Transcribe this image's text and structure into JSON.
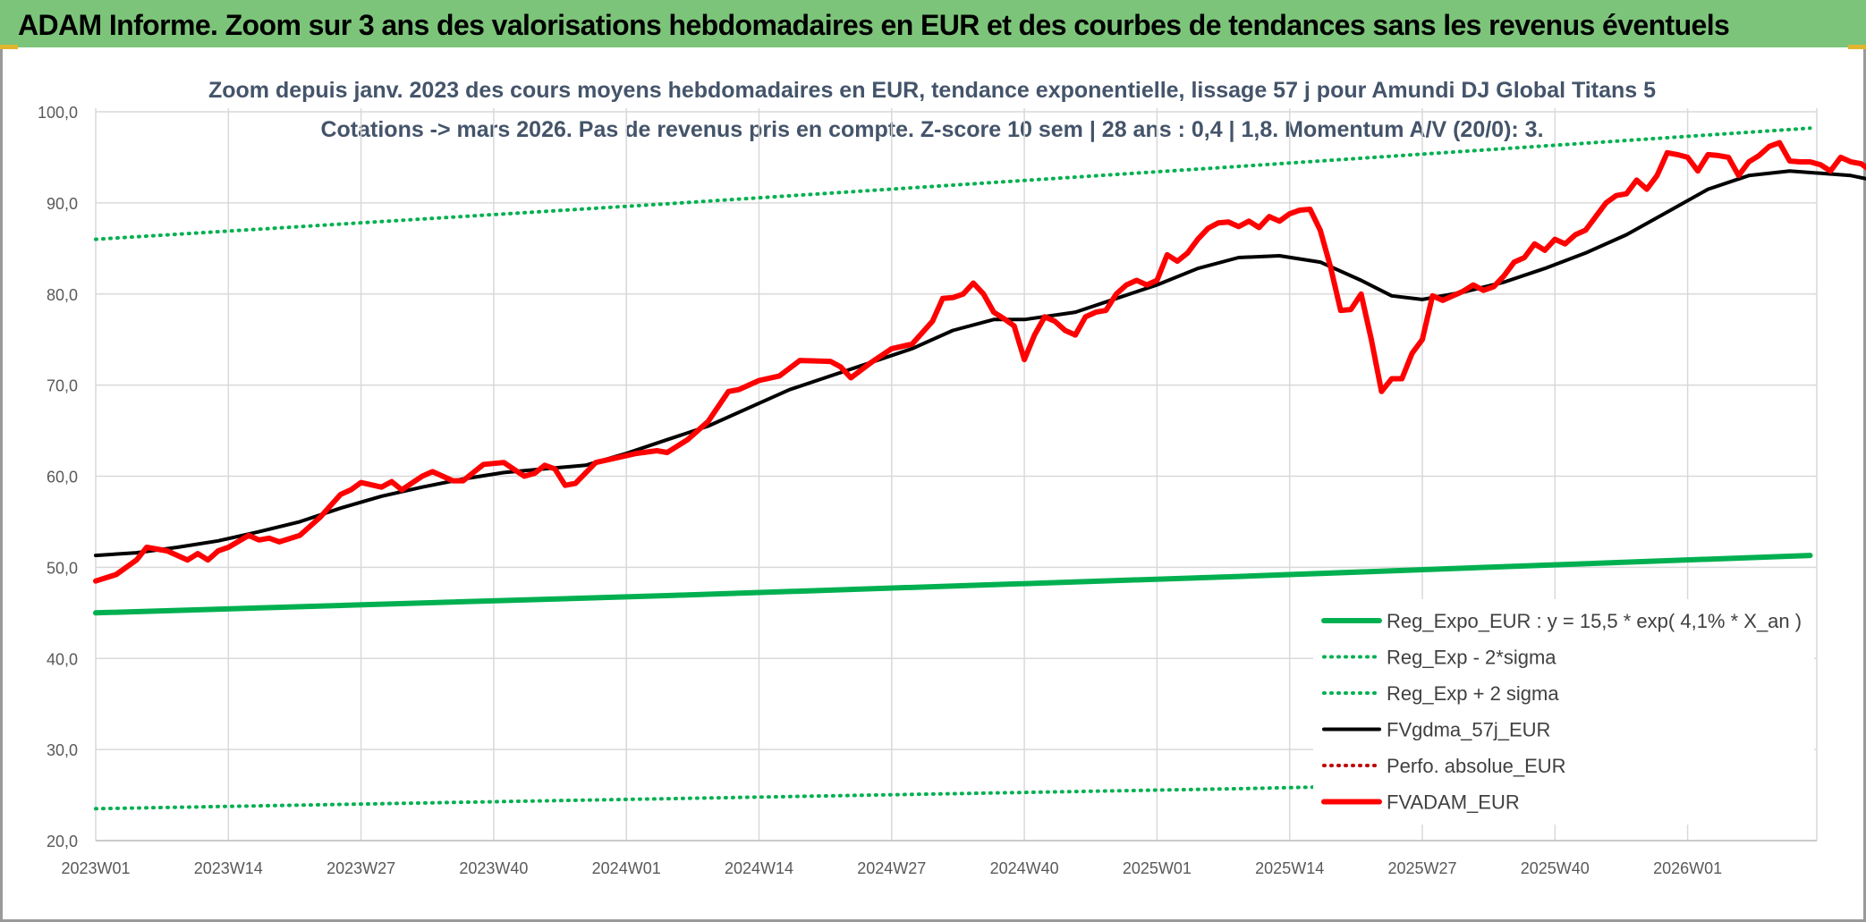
{
  "header": {
    "title": "ADAM Informe. Zoom sur 3 ans des valorisations hebdomadaires en EUR et des courbes de tendances sans les revenus éventuels"
  },
  "colors": {
    "header_bg": "#7cc47a",
    "reg_green": "#00b050",
    "price_red": "#ff0000",
    "average_black": "#000000",
    "perfo_red_dotted": "#c00000"
  },
  "chart_data": {
    "type": "line",
    "title": "Zoom depuis janv. 2023 des cours moyens hebdomadaires en EUR, tendance exponentielle, lissage 57 j pour Amundi DJ Global Titans 5",
    "subtitle": "Cotations -> mars 2026. Pas de revenus pris en compte. Z-score 10 sem | 28 ans : 0,4 | 1,8. Momentum A/V (20/0): 3.",
    "xlabel": "",
    "ylabel": "",
    "ylim": [
      20,
      100
    ],
    "yticks": [
      "20,0",
      "30,0",
      "40,0",
      "50,0",
      "60,0",
      "70,0",
      "80,0",
      "90,0",
      "100,0"
    ],
    "x_tick_labels": [
      "2023W01",
      "2023W14",
      "2023W27",
      "2023W40",
      "2024W01",
      "2024W14",
      "2024W27",
      "2024W40",
      "2025W01",
      "2025W14",
      "2025W27",
      "2025W40",
      "2026W01"
    ],
    "x_range_weeks": [
      0,
      168
    ],
    "grid": true,
    "legend_position": "right",
    "series": [
      {
        "name": "Reg_Expo_EUR : y = 15,5 * exp( 4,1% *  X_an )",
        "style": "solid-thick",
        "color": "#00b050",
        "points": [
          [
            0,
            45.0
          ],
          [
            56,
            46.9
          ],
          [
            112,
            49.0
          ],
          [
            168,
            51.3
          ]
        ]
      },
      {
        "name": "Reg_Exp - 2*sigma",
        "style": "dotted",
        "color": "#00b050",
        "points": [
          [
            0,
            23.5
          ],
          [
            56,
            24.6
          ],
          [
            112,
            25.7
          ],
          [
            168,
            27.0
          ]
        ]
      },
      {
        "name": "Reg_Exp + 2 sigma",
        "style": "dotted",
        "color": "#00b050",
        "points": [
          [
            0,
            86.0
          ],
          [
            56,
            89.9
          ],
          [
            112,
            94.0
          ],
          [
            168,
            98.2
          ]
        ]
      },
      {
        "name": "FVgdma_57j_EUR",
        "style": "solid",
        "color": "#000000",
        "points": [
          [
            0,
            51.3
          ],
          [
            4,
            51.6
          ],
          [
            8,
            52.2
          ],
          [
            12,
            52.9
          ],
          [
            16,
            53.9
          ],
          [
            20,
            55.0
          ],
          [
            24,
            56.5
          ],
          [
            28,
            57.8
          ],
          [
            32,
            58.8
          ],
          [
            36,
            59.7
          ],
          [
            40,
            60.4
          ],
          [
            44,
            60.8
          ],
          [
            48,
            61.2
          ],
          [
            52,
            62.5
          ],
          [
            56,
            64.0
          ],
          [
            60,
            65.5
          ],
          [
            64,
            67.5
          ],
          [
            68,
            69.5
          ],
          [
            72,
            71.0
          ],
          [
            76,
            72.5
          ],
          [
            80,
            74.0
          ],
          [
            84,
            76.0
          ],
          [
            88,
            77.2
          ],
          [
            91,
            77.2
          ],
          [
            96,
            78.0
          ],
          [
            100,
            79.5
          ],
          [
            104,
            81.0
          ],
          [
            108,
            82.8
          ],
          [
            112,
            84.0
          ],
          [
            116,
            84.2
          ],
          [
            120,
            83.5
          ],
          [
            124,
            81.5
          ],
          [
            127,
            79.8
          ],
          [
            130,
            79.4
          ],
          [
            134,
            80.2
          ],
          [
            138,
            81.3
          ],
          [
            142,
            82.8
          ],
          [
            146,
            84.5
          ],
          [
            150,
            86.5
          ],
          [
            154,
            89.0
          ],
          [
            158,
            91.5
          ],
          [
            162,
            93.0
          ],
          [
            166,
            93.5
          ],
          [
            172,
            93.0
          ],
          [
            175,
            92.3
          ]
        ]
      },
      {
        "name": "Perfo. absolue_EUR",
        "style": "dotted",
        "color": "#c00000",
        "points": []
      },
      {
        "name": "FVADAM_EUR",
        "style": "solid-thick",
        "color": "#ff0000",
        "points": [
          [
            0,
            48.5
          ],
          [
            2,
            49.2
          ],
          [
            4,
            50.8
          ],
          [
            5,
            52.2
          ],
          [
            7,
            51.8
          ],
          [
            9,
            50.8
          ],
          [
            10,
            51.5
          ],
          [
            11,
            50.8
          ],
          [
            12,
            51.8
          ],
          [
            13,
            52.2
          ],
          [
            15,
            53.5
          ],
          [
            16,
            53.0
          ],
          [
            17,
            53.2
          ],
          [
            18,
            52.8
          ],
          [
            20,
            53.5
          ],
          [
            22,
            55.5
          ],
          [
            24,
            58.0
          ],
          [
            25,
            58.5
          ],
          [
            26,
            59.3
          ],
          [
            28,
            58.8
          ],
          [
            29,
            59.4
          ],
          [
            30,
            58.5
          ],
          [
            32,
            60.0
          ],
          [
            33,
            60.5
          ],
          [
            35,
            59.5
          ],
          [
            36,
            59.5
          ],
          [
            38,
            61.3
          ],
          [
            40,
            61.5
          ],
          [
            42,
            60.0
          ],
          [
            43,
            60.3
          ],
          [
            44,
            61.2
          ],
          [
            45,
            60.8
          ],
          [
            46,
            59.0
          ],
          [
            47,
            59.2
          ],
          [
            49,
            61.5
          ],
          [
            51,
            62.0
          ],
          [
            53,
            62.5
          ],
          [
            55,
            62.8
          ],
          [
            56,
            62.6
          ],
          [
            58,
            64.0
          ],
          [
            60,
            66.0
          ],
          [
            62,
            69.3
          ],
          [
            63,
            69.5
          ],
          [
            65,
            70.5
          ],
          [
            67,
            71.0
          ],
          [
            69,
            72.7
          ],
          [
            72,
            72.6
          ],
          [
            73,
            72.0
          ],
          [
            74,
            70.8
          ],
          [
            76,
            72.5
          ],
          [
            78,
            74.0
          ],
          [
            80,
            74.5
          ],
          [
            82,
            77.0
          ],
          [
            83,
            79.5
          ],
          [
            84,
            79.6
          ],
          [
            85,
            80.0
          ],
          [
            86,
            81.2
          ],
          [
            87,
            80.0
          ],
          [
            88,
            78.0
          ],
          [
            89,
            77.3
          ],
          [
            90,
            76.5
          ],
          [
            91,
            72.8
          ],
          [
            92,
            75.5
          ],
          [
            93,
            77.5
          ],
          [
            94,
            77.0
          ],
          [
            95,
            76.0
          ],
          [
            96,
            75.5
          ],
          [
            97,
            77.5
          ],
          [
            98,
            78.0
          ],
          [
            99,
            78.2
          ],
          [
            100,
            80.0
          ],
          [
            101,
            81.0
          ],
          [
            102,
            81.5
          ],
          [
            103,
            81.0
          ],
          [
            104,
            81.5
          ],
          [
            105,
            84.3
          ],
          [
            106,
            83.6
          ],
          [
            107,
            84.5
          ],
          [
            108,
            86.0
          ],
          [
            109,
            87.2
          ],
          [
            110,
            87.8
          ],
          [
            111,
            87.9
          ],
          [
            112,
            87.4
          ],
          [
            113,
            88.0
          ],
          [
            114,
            87.3
          ],
          [
            115,
            88.5
          ],
          [
            116,
            88.0
          ],
          [
            117,
            88.8
          ],
          [
            118,
            89.2
          ],
          [
            119,
            89.3
          ],
          [
            120,
            87.0
          ],
          [
            121,
            83.0
          ],
          [
            122,
            78.2
          ],
          [
            123,
            78.3
          ],
          [
            124,
            80.0
          ],
          [
            125,
            75.0
          ],
          [
            126,
            69.3
          ],
          [
            127,
            70.7
          ],
          [
            128,
            70.7
          ],
          [
            129,
            73.5
          ],
          [
            130,
            75.0
          ],
          [
            131,
            79.8
          ],
          [
            132,
            79.3
          ],
          [
            133,
            79.8
          ],
          [
            134,
            80.3
          ],
          [
            135,
            81.0
          ],
          [
            136,
            80.4
          ],
          [
            137,
            80.8
          ],
          [
            138,
            82.0
          ],
          [
            139,
            83.5
          ],
          [
            140,
            84.0
          ],
          [
            141,
            85.5
          ],
          [
            142,
            84.8
          ],
          [
            143,
            86.0
          ],
          [
            144,
            85.5
          ],
          [
            145,
            86.5
          ],
          [
            146,
            87.0
          ],
          [
            147,
            88.5
          ],
          [
            148,
            90.0
          ],
          [
            149,
            90.8
          ],
          [
            150,
            91.0
          ],
          [
            151,
            92.5
          ],
          [
            152,
            91.5
          ],
          [
            153,
            93.0
          ],
          [
            154,
            95.5
          ],
          [
            155,
            95.3
          ],
          [
            156,
            95.0
          ],
          [
            157,
            93.5
          ],
          [
            158,
            95.3
          ],
          [
            159,
            95.2
          ],
          [
            160,
            95.0
          ],
          [
            161,
            93.0
          ],
          [
            162,
            94.5
          ],
          [
            163,
            95.2
          ],
          [
            164,
            96.2
          ],
          [
            165,
            96.6
          ],
          [
            166,
            94.6
          ],
          [
            167,
            94.5
          ],
          [
            168,
            94.5
          ],
          [
            169,
            94.2
          ],
          [
            170,
            93.5
          ],
          [
            171,
            95.0
          ],
          [
            172,
            94.5
          ],
          [
            173,
            94.3
          ],
          [
            174,
            93.5
          ],
          [
            175,
            91.0
          ]
        ]
      }
    ]
  }
}
